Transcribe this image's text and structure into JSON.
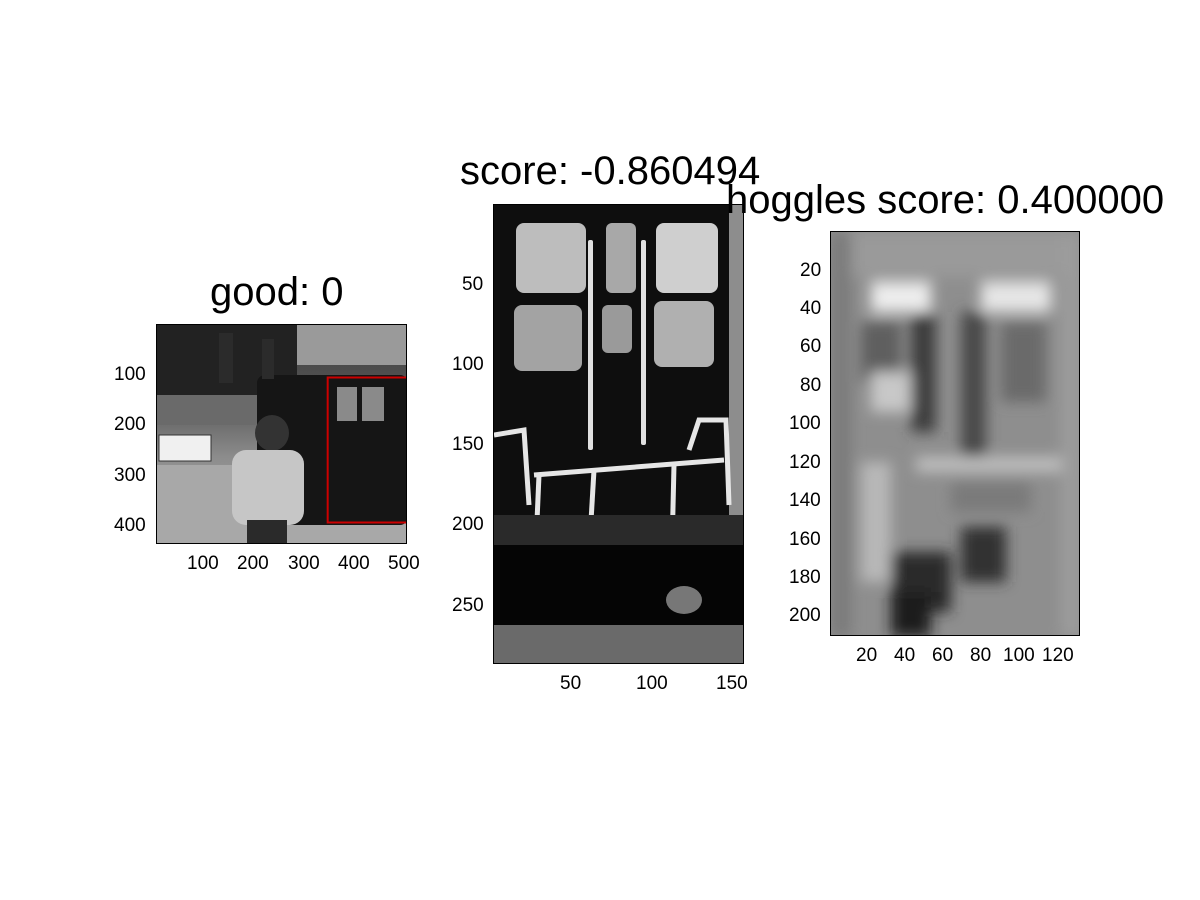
{
  "panels": [
    {
      "title": "good: 0",
      "x_ticks": [
        "100",
        "200",
        "300",
        "400",
        "500"
      ],
      "y_ticks": [
        "100",
        "200",
        "300",
        "400"
      ],
      "bbox_color": "#cc0000"
    },
    {
      "title": "score: -0.860494",
      "x_ticks": [
        "50",
        "100",
        "150"
      ],
      "y_ticks": [
        "50",
        "100",
        "150",
        "200",
        "250"
      ]
    },
    {
      "title": "hoggles score: 0.400000",
      "x_ticks": [
        "20",
        "40",
        "60",
        "80",
        "100",
        "120"
      ],
      "y_ticks": [
        "20",
        "40",
        "60",
        "80",
        "100",
        "120",
        "140",
        "160",
        "180",
        "200"
      ]
    }
  ],
  "chart_data": [
    {
      "type": "heatmap",
      "title": "good: 0",
      "description_kind": "grayscale photo",
      "xlim": [
        0,
        500
      ],
      "ylim": [
        440,
        0
      ],
      "detection_box": {
        "x": [
          340,
          500
        ],
        "y": [
          105,
          395
        ]
      }
    },
    {
      "type": "heatmap",
      "title": "score: -0.860494",
      "description_kind": "grayscale crop",
      "xlim": [
        0,
        155
      ],
      "ylim": [
        285,
        0
      ]
    },
    {
      "type": "heatmap",
      "title": "hoggles score: 0.400000",
      "description_kind": "grayscale HOG inversion",
      "xlim": [
        0,
        132
      ],
      "ylim": [
        212,
        0
      ]
    }
  ]
}
